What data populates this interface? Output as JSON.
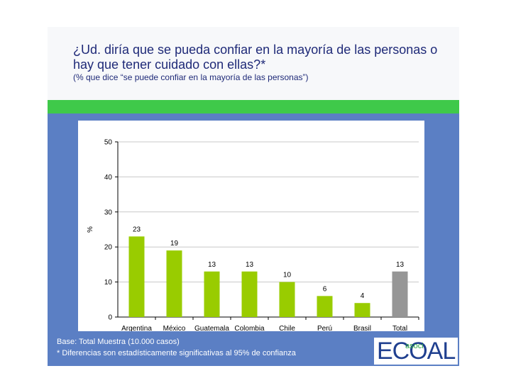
{
  "header": {
    "title": "¿Ud. diría que se pueda confiar en la mayoría de las personas o hay que tener cuidado con ellas?*",
    "subtitle": "(% que dice “se puede confiar en la mayoría de las personas”)"
  },
  "footer": {
    "base": "Base: Total Muestra (10.000 casos)",
    "note": "* Diferencias son estadísticamente significativas al 95% de confianza"
  },
  "logo": {
    "main": "ECOAL",
    "sub": "asoci"
  },
  "colors": {
    "bar": "#99cc00",
    "total_bar": "#969696",
    "green_band": "#3fc94a",
    "blue_area": "#5b7fc4"
  },
  "chart_data": {
    "type": "bar",
    "categories": [
      "Argentina",
      "México",
      "Guatemala",
      "Colombia",
      "Chile",
      "Perú",
      "Brasil",
      "Total"
    ],
    "values": [
      23,
      19,
      13,
      13,
      10,
      6,
      4,
      13
    ],
    "data_labels": [
      "23",
      "19",
      "13",
      "13",
      "10",
      "6",
      "4",
      "13"
    ],
    "ylabel": "%",
    "ylim": [
      0,
      50
    ],
    "yticks": [
      0,
      10,
      20,
      30,
      40,
      50
    ],
    "ytick_labels": [
      "0",
      "10",
      "20",
      "30",
      "40",
      "50"
    ],
    "grid": true,
    "legend": "none"
  }
}
